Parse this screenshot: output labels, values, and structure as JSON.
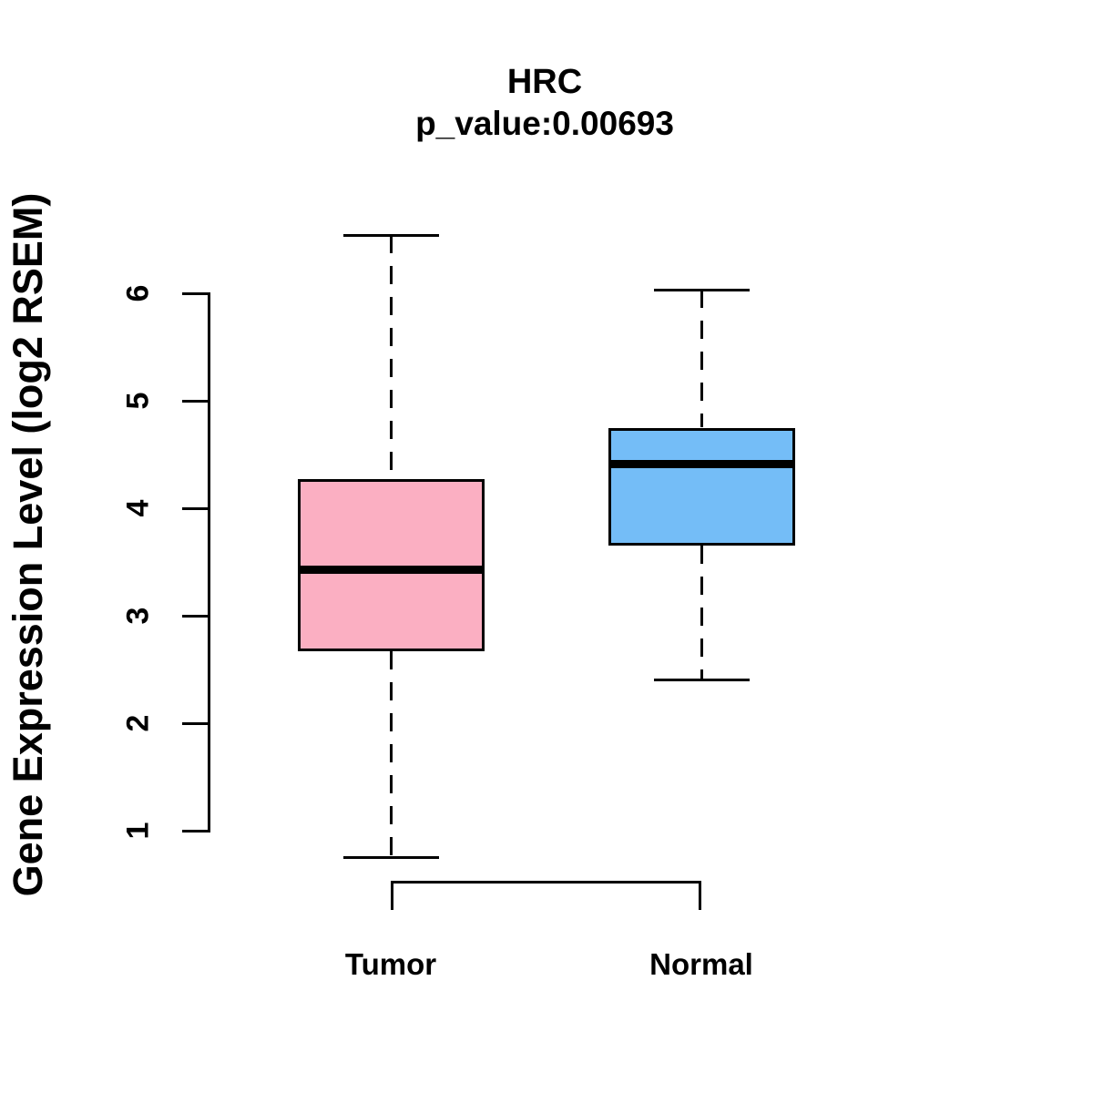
{
  "chart_data": {
    "type": "box",
    "title": "HRC",
    "subtitle": "p_value:0.00693",
    "p_value": "0.00693",
    "ylabel": "Gene Expression Level (log2 RSEM)",
    "xlabel": "",
    "categories": [
      "Tumor",
      "Normal"
    ],
    "yticks": [
      1,
      2,
      3,
      4,
      5,
      6
    ],
    "axis_range": [
      1,
      6
    ],
    "grid": false,
    "legend_position": "none",
    "tick_label_rotation": 90,
    "series": [
      {
        "name": "Tumor",
        "color": "#FBAFC2",
        "whisker_low": 0.75,
        "q1": 2.67,
        "median": 3.43,
        "q3": 4.27,
        "whisker_high": 6.54
      },
      {
        "name": "Normal",
        "color": "#74BDF7",
        "whisker_low": 2.4,
        "q1": 3.65,
        "median": 4.41,
        "q3": 4.75,
        "whisker_high": 6.03
      }
    ],
    "annotations": {
      "bracket": "connects Tumor and Normal group positions below plot"
    }
  }
}
